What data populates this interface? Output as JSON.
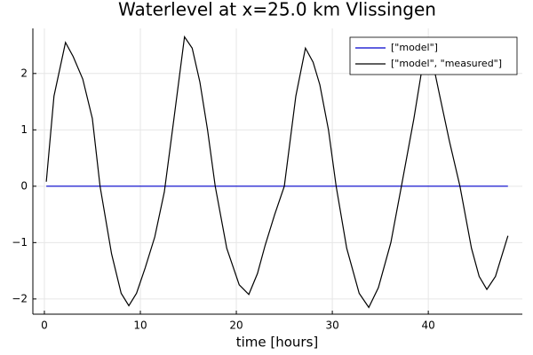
{
  "chart_data": {
    "type": "line",
    "title": "Waterlevel at x=25.0 km Vlissingen",
    "xlabel": "time [hours]",
    "xlim": [
      -1.2,
      49.8
    ],
    "ylim": [
      -2.27,
      2.8
    ],
    "xticks": [
      0,
      10,
      20,
      30,
      40
    ],
    "yticks": [
      {
        "value": -2,
        "label": "−2"
      },
      {
        "value": -1,
        "label": "−1"
      },
      0,
      1,
      2
    ],
    "grid": true,
    "legend": "top-right",
    "series": [
      {
        "name": "[\"model\"]",
        "color": "#0000cc",
        "x": [
          0.2,
          48.3
        ],
        "values": [
          0,
          0
        ]
      },
      {
        "name": "[\"model\", \"measured\"]",
        "color": "#000000",
        "x": [
          0.2,
          1,
          2.2,
          3,
          4,
          5,
          5.8,
          7,
          8,
          8.8,
          9.6,
          10.5,
          11.5,
          12.5,
          13.5,
          14.6,
          15.4,
          16.2,
          17,
          17.8,
          19,
          20.3,
          21.3,
          22.2,
          23,
          24,
          25,
          26.2,
          27.2,
          28,
          28.7,
          29.6,
          30.4,
          31.5,
          32.8,
          33.8,
          34.8,
          36.1,
          37.2,
          38.5,
          39.6,
          40.4,
          41.2,
          42.2,
          43.3,
          44.5,
          45.3,
          46.1,
          47,
          48.3
        ],
        "values": [
          0.08,
          1.6,
          2.55,
          2.3,
          1.9,
          1.2,
          0,
          -1.2,
          -1.9,
          -2.12,
          -1.9,
          -1.45,
          -0.9,
          -0.1,
          1.2,
          2.65,
          2.45,
          1.85,
          1.0,
          0,
          -1.1,
          -1.75,
          -1.92,
          -1.55,
          -1.05,
          -0.5,
          0,
          1.6,
          2.45,
          2.2,
          1.8,
          1.0,
          0,
          -1.1,
          -1.9,
          -2.15,
          -1.8,
          -1.0,
          0,
          1.2,
          2.35,
          2.25,
          1.6,
          0.8,
          0,
          -1.1,
          -1.6,
          -1.83,
          -1.6,
          -0.88
        ]
      }
    ]
  }
}
